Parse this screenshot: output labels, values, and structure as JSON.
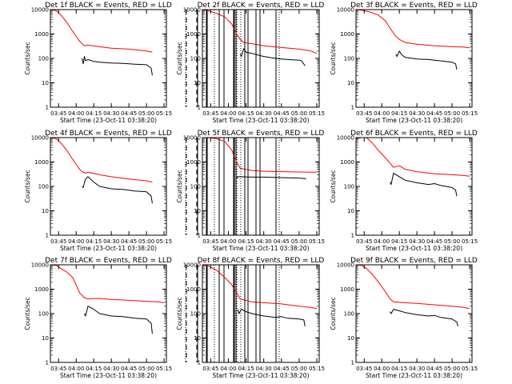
{
  "figure": {
    "panels": [
      {
        "title": "Det 1f BLACK = Events, RED = LLD",
        "xlabel": "Start Time (23-Oct-11 03:38:20)",
        "ylabel": "Counts/sec"
      },
      {
        "title": "Det 2f BLACK = Events, RED = LLD",
        "xlabel": "Start Time (23-Oct-11 03:38:20)",
        "ylabel": "Counts/sec"
      },
      {
        "title": "Det 3f BLACK = Events, RED = LLD",
        "xlabel": "Start Time (23-Oct-11 03:38:20)",
        "ylabel": "Counts/sec"
      },
      {
        "title": "Det 4f BLACK = Events, RED = LLD",
        "xlabel": "Start Time (23-Oct-11 03:38:20)",
        "ylabel": "Counts/sec"
      },
      {
        "title": "Det 5f BLACK = Events, RED = LLD",
        "xlabel": "Start Time (23-Oct-11 03:38:20)",
        "ylabel": "Counts/sec"
      },
      {
        "title": "Det 6f BLACK = Events, RED = LLD",
        "xlabel": "Start Time (23-Oct-11 03:38:20)",
        "ylabel": "Counts/sec"
      },
      {
        "title": "Det 7f BLACK = Events, RED = LLD",
        "xlabel": "Start Time (23-Oct-11 03:38:20)",
        "ylabel": "Counts/sec"
      },
      {
        "title": "Det 8f BLACK = Events, RED = LLD",
        "xlabel": "Start Time (23-Oct-11 03:38:20)",
        "ylabel": "Counts/sec"
      },
      {
        "title": "Det 9f BLACK = Events, RED = LLD",
        "xlabel": "Start Time (23-Oct-11 03:38:20)",
        "ylabel": "Counts/sec"
      }
    ]
  },
  "chart_data": [
    {
      "type": "line",
      "title": "Det 1f BLACK = Events, RED = LLD",
      "xlabel": "Start Time (23-Oct-11 03:38:20)",
      "ylabel": "Counts/sec",
      "y_scale": "log",
      "ylim": [
        1,
        10000
      ],
      "xlim": [
        "03:38",
        "05:17"
      ],
      "x_ticks": [
        "03:45",
        "04:00",
        "04:15",
        "04:30",
        "04:45",
        "05:00",
        "05:15"
      ],
      "y_ticks": [
        "1",
        "10",
        "100",
        "1000",
        "10000"
      ],
      "series": [
        {
          "name": "BLACK = Events",
          "color": "#000000",
          "x": [
            "04:05",
            "04:06",
            "04:07",
            "04:08",
            "04:10",
            "04:15",
            "04:20",
            "04:30",
            "04:40",
            "04:45",
            "04:50",
            "05:00",
            "05:04",
            "05:05"
          ],
          "y": [
            100,
            60,
            120,
            80,
            90,
            75,
            70,
            65,
            62,
            60,
            58,
            55,
            40,
            20
          ]
        },
        {
          "name": "RED = LLD",
          "color": "#ff0000",
          "x": [
            "03:38",
            "03:43",
            "03:47",
            "03:52",
            "03:56",
            "04:00",
            "04:03",
            "04:05",
            "04:07",
            "04:10",
            "04:20",
            "04:30",
            "04:45",
            "05:00",
            "05:05"
          ],
          "y": [
            10000,
            9000,
            6000,
            3000,
            1500,
            800,
            500,
            400,
            330,
            350,
            300,
            260,
            240,
            200,
            180
          ]
        }
      ]
    },
    {
      "type": "line",
      "title": "Det 2f BLACK = Events, RED = LLD",
      "xlabel": "Start Time (23-Oct-11 03:38:20)",
      "ylabel": "Counts/sec",
      "y_scale": "log",
      "ylim": [
        1,
        10000
      ],
      "xlim": [
        "03:38",
        "05:17"
      ],
      "x_ticks": [
        "03:45",
        "04:00",
        "04:15",
        "04:30",
        "04:45",
        "05:00",
        "05:15"
      ],
      "y_ticks": [
        "1",
        "10",
        "100",
        "1000",
        "10000"
      ],
      "series": [
        {
          "name": "BLACK = Events",
          "color": "#000000",
          "x": [
            "04:10",
            "04:11",
            "04:13",
            "04:15",
            "04:20",
            "04:30",
            "04:40",
            "04:45",
            "04:50",
            "05:00",
            "05:02",
            "05:05"
          ],
          "y": [
            150,
            120,
            250,
            180,
            160,
            120,
            100,
            95,
            90,
            85,
            80,
            50
          ]
        },
        {
          "name": "RED = LLD",
          "color": "#ff0000",
          "x": [
            "03:38",
            "03:43",
            "03:50",
            "03:57",
            "04:03",
            "04:07",
            "04:10",
            "04:13",
            "04:20",
            "04:30",
            "04:45",
            "05:00",
            "05:10",
            "05:15"
          ],
          "y": [
            10000,
            9000,
            7000,
            5000,
            2500,
            1000,
            600,
            450,
            400,
            330,
            280,
            240,
            200,
            160
          ]
        }
      ]
    },
    {
      "type": "line",
      "title": "Det 3f BLACK = Events, RED = LLD",
      "xlabel": "Start Time (23-Oct-11 03:38:20)",
      "ylabel": "Counts/sec",
      "y_scale": "log",
      "ylim": [
        1,
        10000
      ],
      "xlim": [
        "03:38",
        "05:17"
      ],
      "x_ticks": [
        "03:45",
        "04:00",
        "04:15",
        "04:30",
        "04:45",
        "05:00",
        "05:15"
      ],
      "y_ticks": [
        "1",
        "10",
        "100",
        "1000",
        "10000"
      ],
      "series": [
        {
          "name": "BLACK = Events",
          "color": "#000000",
          "x": [
            "04:12",
            "04:13",
            "04:15",
            "04:17",
            "04:20",
            "04:30",
            "04:40",
            "04:45",
            "04:50",
            "05:00",
            "05:03",
            "05:04"
          ],
          "y": [
            150,
            120,
            200,
            140,
            110,
            95,
            90,
            85,
            80,
            70,
            60,
            35
          ]
        },
        {
          "name": "RED = LLD",
          "color": "#ff0000",
          "x": [
            "03:38",
            "03:43",
            "03:50",
            "03:57",
            "04:03",
            "04:08",
            "04:12",
            "04:15",
            "04:20",
            "04:30",
            "04:45",
            "05:00",
            "05:10",
            "05:15"
          ],
          "y": [
            10000,
            9500,
            8000,
            6000,
            3500,
            1500,
            800,
            600,
            450,
            380,
            330,
            300,
            290,
            270
          ]
        }
      ]
    },
    {
      "type": "line",
      "title": "Det 4f BLACK = Events, RED = LLD",
      "xlabel": "Start Time (23-Oct-11 03:38:20)",
      "ylabel": "Counts/sec",
      "y_scale": "log",
      "ylim": [
        1,
        10000
      ],
      "xlim": [
        "03:38",
        "05:17"
      ],
      "x_ticks": [
        "03:45",
        "04:00",
        "04:15",
        "04:30",
        "04:45",
        "05:00",
        "05:15"
      ],
      "y_ticks": [
        "1",
        "10",
        "100",
        "1000",
        "10000"
      ],
      "series": [
        {
          "name": "BLACK = Events",
          "color": "#000000",
          "x": [
            "04:05",
            "04:06",
            "04:08",
            "04:10",
            "04:15",
            "04:20",
            "04:30",
            "04:40",
            "04:45",
            "04:50",
            "05:00",
            "05:04",
            "05:05"
          ],
          "y": [
            100,
            90,
            200,
            250,
            150,
            100,
            80,
            75,
            70,
            65,
            60,
            40,
            20
          ]
        },
        {
          "name": "RED = LLD",
          "color": "#ff0000",
          "x": [
            "03:38",
            "03:43",
            "03:47",
            "03:52",
            "03:56",
            "04:00",
            "04:03",
            "04:05",
            "04:08",
            "04:10",
            "04:20",
            "04:30",
            "04:45",
            "05:00",
            "05:05"
          ],
          "y": [
            10000,
            9000,
            6000,
            3000,
            1500,
            800,
            500,
            400,
            350,
            380,
            300,
            250,
            200,
            170,
            150
          ]
        }
      ]
    },
    {
      "type": "line",
      "title": "Det 5f BLACK = Events, RED = LLD",
      "xlabel": "Start Time (23-Oct-11 03:38:20)",
      "ylabel": "Counts/sec",
      "y_scale": "log",
      "ylim": [
        1,
        10000
      ],
      "xlim": [
        "03:38",
        "05:17"
      ],
      "x_ticks": [
        "03:45",
        "04:00",
        "04:15",
        "04:30",
        "04:45",
        "05:00",
        "05:15"
      ],
      "y_ticks": [
        "1",
        "10",
        "100",
        "1000",
        "10000"
      ],
      "series": [
        {
          "name": "BLACK = Events",
          "color": "#000000",
          "x": [
            "04:07",
            "04:08",
            "04:10",
            "04:20",
            "04:30",
            "04:45",
            "05:00",
            "05:05",
            "05:06"
          ],
          "y": [
            200,
            250,
            250,
            240,
            240,
            230,
            220,
            210,
            200
          ]
        },
        {
          "name": "RED = LLD",
          "color": "#ff0000",
          "x": [
            "03:38",
            "03:43",
            "03:50",
            "03:57",
            "04:03",
            "04:07",
            "04:10",
            "04:20",
            "04:30",
            "04:45",
            "05:00",
            "05:10",
            "05:15"
          ],
          "y": [
            10000,
            10000,
            9000,
            7000,
            3000,
            1000,
            550,
            450,
            420,
            400,
            390,
            380,
            380
          ]
        }
      ]
    },
    {
      "type": "line",
      "title": "Det 6f BLACK = Events, RED = LLD",
      "xlabel": "Start Time (23-Oct-11 03:38:20)",
      "ylabel": "Counts/sec",
      "y_scale": "log",
      "ylim": [
        1,
        10000
      ],
      "xlim": [
        "03:38",
        "05:17"
      ],
      "x_ticks": [
        "03:45",
        "04:00",
        "04:15",
        "04:30",
        "04:45",
        "05:00",
        "05:15"
      ],
      "y_ticks": [
        "1",
        "10",
        "100",
        "1000",
        "10000"
      ],
      "series": [
        {
          "name": "BLACK = Events",
          "color": "#000000",
          "x": [
            "04:07",
            "04:08",
            "04:10",
            "04:15",
            "04:20",
            "04:30",
            "04:40",
            "04:45",
            "04:50",
            "05:00",
            "05:03",
            "05:04"
          ],
          "y": [
            150,
            120,
            350,
            250,
            180,
            140,
            120,
            130,
            110,
            90,
            70,
            40
          ]
        },
        {
          "name": "RED = LLD",
          "color": "#ff0000",
          "x": [
            "03:38",
            "03:43",
            "03:47",
            "03:52",
            "03:57",
            "04:03",
            "04:07",
            "04:10",
            "04:15",
            "04:20",
            "04:30",
            "04:45",
            "05:00",
            "05:10",
            "05:15"
          ],
          "y": [
            9000,
            10000,
            10000,
            6000,
            3000,
            1500,
            900,
            600,
            700,
            500,
            400,
            330,
            300,
            280,
            260
          ]
        }
      ]
    },
    {
      "type": "line",
      "title": "Det 7f BLACK = Events, RED = LLD",
      "xlabel": "Start Time (23-Oct-11 03:38:20)",
      "ylabel": "Counts/sec",
      "y_scale": "log",
      "ylim": [
        1,
        10000
      ],
      "xlim": [
        "03:38",
        "05:17"
      ],
      "x_ticks": [
        "03:45",
        "04:00",
        "04:15",
        "04:30",
        "04:45",
        "05:00",
        "05:15"
      ],
      "y_ticks": [
        "1",
        "10",
        "100",
        "1000",
        "10000"
      ],
      "series": [
        {
          "name": "BLACK = Events",
          "color": "#000000",
          "x": [
            "04:07",
            "04:08",
            "04:10",
            "04:15",
            "04:20",
            "04:30",
            "04:40",
            "04:45",
            "04:50",
            "05:00",
            "05:04",
            "05:05"
          ],
          "y": [
            100,
            80,
            200,
            150,
            100,
            80,
            75,
            70,
            65,
            60,
            40,
            15
          ]
        },
        {
          "name": "RED = LLD",
          "color": "#ff0000",
          "x": [
            "03:38",
            "03:43",
            "03:47",
            "03:52",
            "03:57",
            "04:00",
            "04:03",
            "04:07",
            "04:10",
            "04:20",
            "04:30",
            "04:45",
            "05:00",
            "05:10",
            "05:15"
          ],
          "y": [
            10000,
            9500,
            7000,
            5000,
            3000,
            1500,
            700,
            450,
            400,
            420,
            380,
            350,
            320,
            300,
            280
          ]
        }
      ]
    },
    {
      "type": "line",
      "title": "Det 8f BLACK = Events, RED = LLD",
      "xlabel": "Start Time (23-Oct-11 03:38:20)",
      "ylabel": "Counts/sec",
      "y_scale": "log",
      "ylim": [
        1,
        10000
      ],
      "xlim": [
        "03:38",
        "05:17"
      ],
      "x_ticks": [
        "03:45",
        "04:00",
        "04:15",
        "04:30",
        "04:45",
        "05:00",
        "05:15"
      ],
      "y_ticks": [
        "1",
        "10",
        "100",
        "1000",
        "10000"
      ],
      "series": [
        {
          "name": "BLACK = Events",
          "color": "#000000",
          "x": [
            "04:08",
            "04:09",
            "04:11",
            "04:15",
            "04:20",
            "04:30",
            "04:40",
            "04:45",
            "04:50",
            "05:00",
            "05:04",
            "05:05"
          ],
          "y": [
            150,
            100,
            150,
            120,
            100,
            80,
            70,
            75,
            65,
            60,
            55,
            30
          ]
        },
        {
          "name": "RED = LLD",
          "color": "#ff0000",
          "x": [
            "03:38",
            "03:43",
            "03:50",
            "03:57",
            "04:03",
            "04:07",
            "04:10",
            "04:20",
            "04:30",
            "04:45",
            "05:00",
            "05:10",
            "05:15"
          ],
          "y": [
            10000,
            9000,
            6000,
            3000,
            1500,
            700,
            400,
            300,
            280,
            250,
            200,
            180,
            160
          ]
        }
      ]
    },
    {
      "type": "line",
      "title": "Det 9f BLACK = Events, RED = LLD",
      "xlabel": "Start Time (23-Oct-11 03:38:20)",
      "ylabel": "Counts/sec",
      "y_scale": "log",
      "ylim": [
        1,
        10000
      ],
      "xlim": [
        "03:38",
        "05:17"
      ],
      "x_ticks": [
        "03:45",
        "04:00",
        "04:15",
        "04:30",
        "04:45",
        "05:00",
        "05:15"
      ],
      "y_ticks": [
        "1",
        "10",
        "100",
        "1000",
        "10000"
      ],
      "series": [
        {
          "name": "BLACK = Events",
          "color": "#000000",
          "x": [
            "04:07",
            "04:08",
            "04:10",
            "04:15",
            "04:20",
            "04:30",
            "04:40",
            "04:45",
            "04:50",
            "05:00",
            "05:04",
            "05:05"
          ],
          "y": [
            120,
            100,
            150,
            130,
            110,
            90,
            80,
            85,
            70,
            60,
            45,
            30
          ]
        },
        {
          "name": "RED = LLD",
          "color": "#ff0000",
          "x": [
            "03:38",
            "03:43",
            "03:47",
            "03:52",
            "03:57",
            "04:03",
            "04:07",
            "04:10",
            "04:20",
            "04:30",
            "04:45",
            "05:00",
            "05:10",
            "05:15"
          ],
          "y": [
            10000,
            9500,
            7000,
            4000,
            2000,
            800,
            400,
            300,
            280,
            260,
            230,
            200,
            180,
            160
          ]
        }
      ]
    }
  ]
}
